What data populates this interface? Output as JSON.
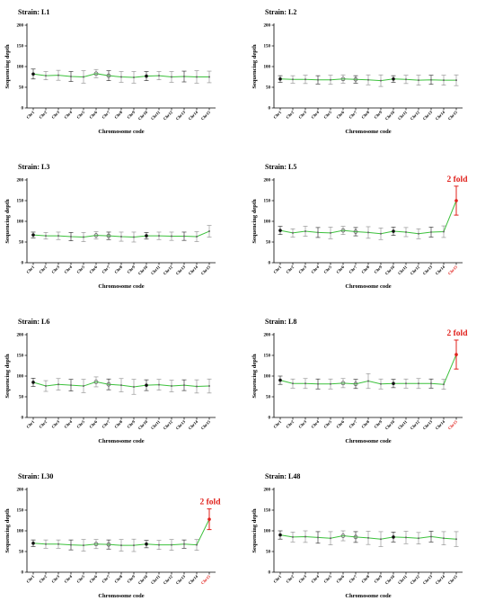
{
  "chart_data": [
    {
      "type": "line",
      "title": "Strain: L1",
      "xlabel": "Chromosome code",
      "ylabel": "Sequencing depth",
      "ylim": [
        0,
        200
      ],
      "yticks": [
        0,
        50,
        100,
        150,
        200
      ],
      "categories": [
        "Chr1",
        "Chr2",
        "Chr3",
        "Chr4",
        "Chr5",
        "Chr6",
        "Chr7",
        "Chr8",
        "Chr9",
        "Chr10",
        "Chr11",
        "Chr12",
        "Chr13",
        "Chr14",
        "Chr15"
      ],
      "values": [
        82,
        78,
        79,
        76,
        75,
        83,
        78,
        75,
        74,
        77,
        78,
        75,
        76,
        75,
        75
      ],
      "errors": [
        12,
        10,
        12,
        12,
        15,
        10,
        12,
        13,
        14,
        11,
        10,
        13,
        13,
        15,
        14
      ],
      "highlight_last": false,
      "annotation": "",
      "line_color": "#3cc13c"
    },
    {
      "type": "line",
      "title": "Strain: L2",
      "xlabel": "Chromosome code",
      "ylabel": "Sequencing depth",
      "ylim": [
        0,
        200
      ],
      "yticks": [
        0,
        50,
        100,
        150,
        200
      ],
      "categories": [
        "Chr1",
        "Chr2",
        "Chr3",
        "Chr4",
        "Chr5",
        "Chr6",
        "Chr7",
        "Chr8",
        "Chr9",
        "Chr10",
        "Chr11",
        "Chr12",
        "Chr13",
        "Chr14",
        "Chr15"
      ],
      "values": [
        70,
        69,
        69,
        68,
        68,
        70,
        69,
        68,
        66,
        70,
        69,
        67,
        68,
        67,
        67
      ],
      "errors": [
        8,
        9,
        10,
        10,
        11,
        10,
        9,
        12,
        14,
        8,
        10,
        12,
        11,
        12,
        13
      ],
      "highlight_last": false,
      "annotation": "",
      "line_color": "#3cc13c"
    },
    {
      "type": "line",
      "title": "Strain: L3",
      "xlabel": "Chromosome code",
      "ylabel": "Sequencing depth",
      "ylim": [
        0,
        200
      ],
      "yticks": [
        0,
        50,
        100,
        150,
        200
      ],
      "categories": [
        "Chr1",
        "Chr2",
        "Chr3",
        "Chr4",
        "Chr5",
        "Chr6",
        "Chr7",
        "Chr8",
        "Chr9",
        "Chr10",
        "Chr11",
        "Chr12",
        "Chr13",
        "Chr14",
        "Chr15"
      ],
      "values": [
        67,
        65,
        65,
        63,
        62,
        66,
        65,
        63,
        62,
        65,
        65,
        64,
        64,
        63,
        76
      ],
      "errors": [
        7,
        8,
        9,
        10,
        11,
        9,
        9,
        11,
        12,
        8,
        9,
        10,
        10,
        12,
        14
      ],
      "highlight_last": false,
      "annotation": "",
      "line_color": "#3cc13c"
    },
    {
      "type": "line",
      "title": "Strain: L5",
      "xlabel": "Chromosome code",
      "ylabel": "Sequencing depth",
      "ylim": [
        0,
        200
      ],
      "yticks": [
        0,
        50,
        100,
        150,
        200
      ],
      "categories": [
        "Chr1",
        "Chr2",
        "Chr3",
        "Chr4",
        "Chr5",
        "Chr6",
        "Chr7",
        "Chr8",
        "Chr9",
        "Chr10",
        "Chr11",
        "Chr12",
        "Chr13",
        "Chr14",
        "Chr15"
      ],
      "values": [
        78,
        72,
        76,
        73,
        72,
        78,
        75,
        73,
        70,
        76,
        74,
        70,
        74,
        75,
        150
      ],
      "errors": [
        10,
        10,
        12,
        12,
        14,
        10,
        10,
        14,
        14,
        10,
        11,
        12,
        12,
        14,
        35
      ],
      "highlight_last": true,
      "annotation": "2 fold",
      "line_color": "#3cc13c"
    },
    {
      "type": "line",
      "title": "Strain: L6",
      "xlabel": "Chromosome code",
      "ylabel": "Sequencing depth",
      "ylim": [
        0,
        200
      ],
      "yticks": [
        0,
        50,
        100,
        150,
        200
      ],
      "categories": [
        "Chr1",
        "Chr2",
        "Chr3",
        "Chr4",
        "Chr5",
        "Chr6",
        "Chr7",
        "Chr8",
        "Chr9",
        "Chr10",
        "Chr11",
        "Chr12",
        "Chr13",
        "Chr14",
        "Chr15"
      ],
      "values": [
        85,
        76,
        80,
        78,
        76,
        86,
        80,
        78,
        74,
        78,
        79,
        76,
        78,
        75,
        76
      ],
      "errors": [
        10,
        13,
        14,
        14,
        16,
        12,
        13,
        16,
        18,
        13,
        13,
        14,
        13,
        16,
        17
      ],
      "highlight_last": false,
      "annotation": "",
      "line_color": "#3cc13c"
    },
    {
      "type": "line",
      "title": "Strain: L8",
      "xlabel": "Chromosome code",
      "ylabel": "Sequencing depth",
      "ylim": [
        0,
        200
      ],
      "yticks": [
        0,
        50,
        100,
        150,
        200
      ],
      "categories": [
        "Chr1",
        "Chr2",
        "Chr3",
        "Chr4",
        "Chr5",
        "Chr6",
        "Chr7",
        "Chr8",
        "Chr9",
        "Chr10",
        "Chr11",
        "Chr12",
        "Chr13",
        "Chr14",
        "Chr15"
      ],
      "values": [
        90,
        82,
        82,
        81,
        81,
        83,
        81,
        88,
        81,
        82,
        82,
        82,
        82,
        80,
        152
      ],
      "errors": [
        10,
        11,
        12,
        12,
        12,
        11,
        11,
        18,
        12,
        10,
        11,
        12,
        11,
        12,
        35
      ],
      "highlight_last": true,
      "annotation": "2 fold",
      "line_color": "#3cc13c"
    },
    {
      "type": "line",
      "title": "Strain: L30",
      "xlabel": "Chromosome code",
      "ylabel": "Sequencing depth",
      "ylim": [
        0,
        200
      ],
      "yticks": [
        0,
        50,
        100,
        150,
        200
      ],
      "categories": [
        "Chr1",
        "Chr2",
        "Chr3",
        "Chr4",
        "Chr5",
        "Chr6",
        "Chr7",
        "Chr8",
        "Chr9",
        "Chr10",
        "Chr11",
        "Chr12",
        "Chr13",
        "Chr14",
        "Chr15"
      ],
      "values": [
        70,
        68,
        68,
        66,
        65,
        68,
        67,
        65,
        65,
        68,
        66,
        66,
        68,
        66,
        128
      ],
      "errors": [
        8,
        10,
        10,
        12,
        14,
        11,
        11,
        14,
        15,
        9,
        11,
        13,
        10,
        13,
        25
      ],
      "highlight_last": true,
      "annotation": "2 fold",
      "line_color": "#3cc13c"
    },
    {
      "type": "line",
      "title": "Strain: L48",
      "xlabel": "Chromosome code",
      "ylabel": "Sequencing depth",
      "ylim": [
        0,
        200
      ],
      "yticks": [
        0,
        50,
        100,
        150,
        200
      ],
      "categories": [
        "Chr1",
        "Chr2",
        "Chr3",
        "Chr4",
        "Chr5",
        "Chr6",
        "Chr7",
        "Chr8",
        "Chr9",
        "Chr10",
        "Chr11",
        "Chr12",
        "Chr13",
        "Chr14",
        "Chr15"
      ],
      "values": [
        90,
        85,
        86,
        84,
        82,
        88,
        85,
        83,
        80,
        85,
        84,
        82,
        86,
        82,
        80
      ],
      "errors": [
        10,
        12,
        14,
        14,
        16,
        12,
        13,
        16,
        18,
        12,
        15,
        14,
        13,
        16,
        18
      ],
      "highlight_last": false,
      "annotation": "",
      "line_color": "#3cc13c"
    }
  ]
}
